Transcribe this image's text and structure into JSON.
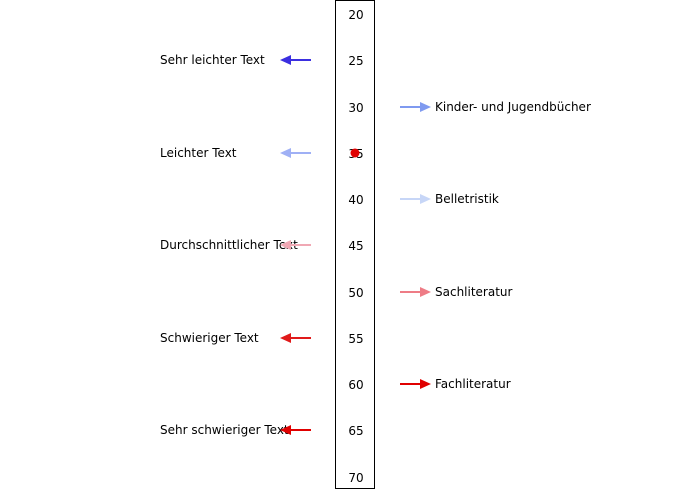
{
  "scale": {
    "min": 20,
    "max": 70,
    "ticks": [
      "20",
      "25",
      "30",
      "35",
      "40",
      "45",
      "50",
      "55",
      "60",
      "65",
      "70"
    ],
    "marker_value": 35,
    "marker_color": "#e00000"
  },
  "left_labels": [
    {
      "text": "Sehr leichter Text",
      "value": 25,
      "color": "#3b2fe0"
    },
    {
      "text": "Leichter Text",
      "value": 35,
      "color": "#9fb0f5"
    },
    {
      "text": "Durchschnittlicher Text",
      "value": 45,
      "color": "#f0a8b4"
    },
    {
      "text": "Schwieriger Text",
      "value": 55,
      "color": "#e01a1a"
    },
    {
      "text": "Sehr schwieriger Text",
      "value": 65,
      "color": "#e00000"
    }
  ],
  "right_labels": [
    {
      "text": "Kinder- und Jugendbücher",
      "value": 30,
      "color": "#7f9af0"
    },
    {
      "text": "Belletristik",
      "value": 40,
      "color": "#c7d6f7"
    },
    {
      "text": "Sachliteratur",
      "value": 50,
      "color": "#ee7c86"
    },
    {
      "text": "Fachliteratur",
      "value": 60,
      "color": "#e00000"
    }
  ]
}
